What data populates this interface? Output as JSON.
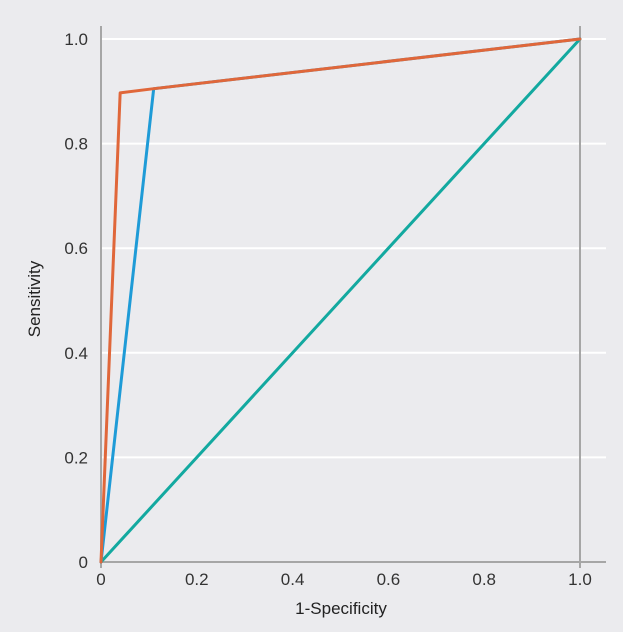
{
  "chart_data": {
    "type": "line",
    "title": "",
    "xlabel": "1-Specificity",
    "ylabel": "Sensitivity",
    "xlim": [
      0,
      1
    ],
    "ylim": [
      0,
      1
    ],
    "x_ticks": [
      0,
      0.2,
      0.4,
      0.6,
      0.8,
      1.0
    ],
    "x_tick_labels": [
      "0",
      "0.2",
      "0.4",
      "0.6",
      "0.8",
      "1.0"
    ],
    "y_ticks": [
      0,
      0.2,
      0.4,
      0.6,
      0.8,
      1.0
    ],
    "y_tick_labels": [
      "0",
      "0.2",
      "0.4",
      "0.6",
      "0.8",
      "1.0"
    ],
    "grid": true,
    "background_color": "#ebebee",
    "series": [
      {
        "color": "#e0673a",
        "x": [
          0,
          0.04,
          0.11,
          1.0
        ],
        "y": [
          0,
          0.897,
          0.905,
          1.0
        ]
      },
      {
        "color": "#1e9bd7",
        "x": [
          0,
          0.11,
          1.0
        ],
        "y": [
          0,
          0.905,
          1.0
        ]
      },
      {
        "color": "#13a9a0",
        "x": [
          0,
          1.0
        ],
        "y": [
          0,
          1.0
        ]
      }
    ]
  }
}
